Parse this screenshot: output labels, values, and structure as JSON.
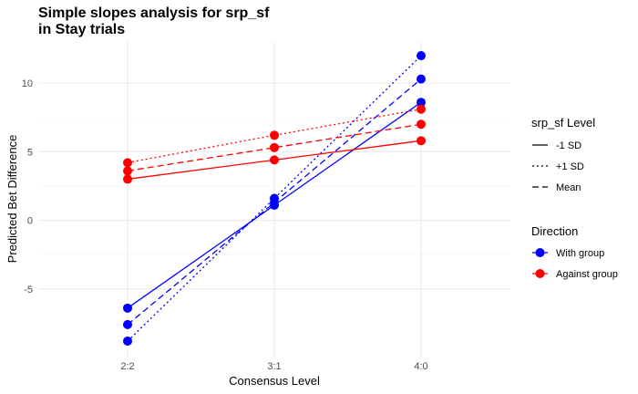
{
  "chart_data": {
    "type": "line",
    "title_line1": "Simple slopes analysis for srp_sf",
    "title_line2": "in Stay trials",
    "xlabel": "Consensus Level",
    "ylabel": "Predicted Bet Difference",
    "categories": [
      "2:2",
      "3:1",
      "4:0"
    ],
    "ylim": [
      -10,
      13
    ],
    "yticks": [
      -5,
      0,
      5,
      10
    ],
    "grid": true,
    "legend_placement": "right",
    "linetype_legend": {
      "title": "srp_sf Level",
      "entries": [
        {
          "label": "-1 SD",
          "dash": "solid"
        },
        {
          "label": "+1 SD",
          "dash": "dotted"
        },
        {
          "label": "Mean",
          "dash": "dashed"
        }
      ]
    },
    "color_legend": {
      "title": "Direction",
      "entries": [
        {
          "label": "With group",
          "color": "#0000ff"
        },
        {
          "label": "Against group",
          "color": "#ff0000"
        }
      ]
    },
    "series": [
      {
        "direction": "With group",
        "level": "-1 SD",
        "color": "#0000ff",
        "dash": "solid",
        "values": [
          -6.4,
          1.1,
          8.6
        ]
      },
      {
        "direction": "With group",
        "level": "Mean",
        "color": "#0000ff",
        "dash": "dashed",
        "values": [
          -7.6,
          1.3,
          10.3
        ]
      },
      {
        "direction": "With group",
        "level": "+1 SD",
        "color": "#0000ff",
        "dash": "dotted",
        "values": [
          -8.8,
          1.6,
          12.0
        ]
      },
      {
        "direction": "Against group",
        "level": "-1 SD",
        "color": "#ff0000",
        "dash": "solid",
        "values": [
          3.0,
          4.4,
          5.8
        ]
      },
      {
        "direction": "Against group",
        "level": "Mean",
        "color": "#ff0000",
        "dash": "dashed",
        "values": [
          3.6,
          5.3,
          7.0
        ]
      },
      {
        "direction": "Against group",
        "level": "+1 SD",
        "color": "#ff0000",
        "dash": "dotted",
        "values": [
          4.2,
          6.2,
          8.1
        ]
      }
    ]
  }
}
